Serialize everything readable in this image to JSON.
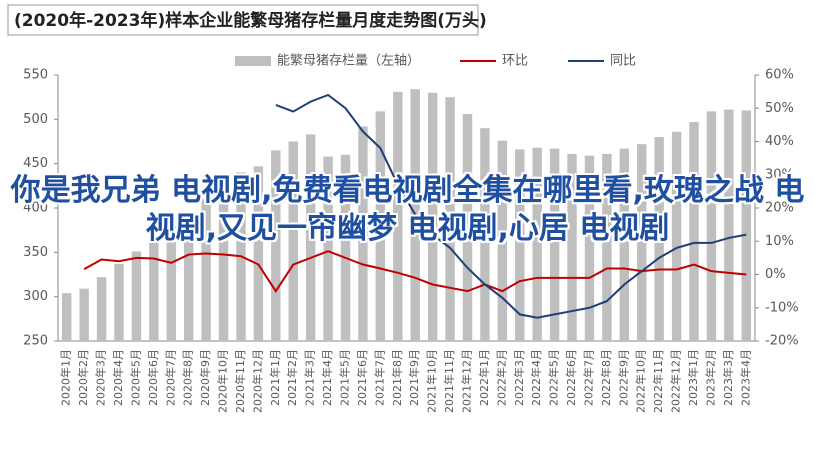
{
  "chart_data": {
    "type": "bar_line",
    "title": "(2020年-2023年)样本企业能繁母猪存栏量月度走势图(万头)",
    "annotation": "你是我兄弟 电视剧,免费看电视剧全集在哪里看,玫瑰之战 电视剧,又见一帘幽梦 电视剧,心居 电视剧",
    "categories": [
      "2020年1月",
      "2020年2月",
      "2020年3月",
      "2020年4月",
      "2020年5月",
      "2020年6月",
      "2020年7月",
      "2020年8月",
      "2020年9月",
      "2020年10月",
      "2020年11月",
      "2020年12月",
      "2021年1月",
      "2021年2月",
      "2021年3月",
      "2021年4月",
      "2021年5月",
      "2021年6月",
      "2021年7月",
      "2021年8月",
      "2021年9月",
      "2021年10月",
      "2021年11月",
      "2021年12月",
      "2022年1月",
      "2022年2月",
      "2022年3月",
      "2022年4月",
      "2022年5月",
      "2022年6月",
      "2022年7月",
      "2022年8月",
      "2022年9月",
      "2022年10月",
      "2022年11月",
      "2022年12月",
      "2023年1月",
      "2023年2月",
      "2023年3月",
      "2023年4月"
    ],
    "series": [
      {
        "name": "能繁母猪存栏量（左轴）",
        "color": "#bfbfbf",
        "kind": "bar",
        "axis": "y",
        "values": [
          304,
          309,
          322,
          337,
          351,
          363,
          380,
          396,
          410,
          424,
          440,
          447,
          465,
          475,
          483,
          458,
          460,
          492,
          509,
          531,
          534,
          530,
          525,
          506,
          490,
          476,
          466,
          468,
          467,
          461,
          459,
          461,
          467,
          472,
          480,
          486,
          497,
          509,
          511,
          510
        ]
      },
      {
        "name": "环比",
        "color": "#c00000",
        "kind": "line",
        "axis": "y2",
        "values": [
          null,
          1.6,
          4.5,
          4.0,
          5.0,
          4.8,
          3.5,
          6.0,
          6.3,
          6.0,
          5.5,
          3.0,
          -5.0,
          3.0,
          5.0,
          7.0,
          5.0,
          3.0,
          1.8,
          0.5,
          -1.0,
          -3.0,
          -4.0,
          -5.0,
          -3.0,
          -5.0,
          -2.0,
          -1.0,
          -1.0,
          -1.0,
          -1.0,
          1.8,
          1.8,
          1.0,
          1.5,
          1.5,
          3.0,
          1.0,
          0.5,
          0.0
        ]
      },
      {
        "name": "同比",
        "color": "#1f3f7a",
        "kind": "line",
        "axis": "y2",
        "values": [
          null,
          null,
          null,
          null,
          null,
          null,
          null,
          null,
          null,
          null,
          null,
          null,
          51,
          49,
          52,
          54,
          50,
          43,
          38,
          27,
          18,
          12,
          8,
          2,
          -3,
          -7,
          -12,
          -13,
          -12,
          -11,
          -10,
          -8,
          -3,
          1,
          5,
          8,
          9.5,
          9.5,
          11,
          12
        ]
      }
    ],
    "ylim": [
      250,
      550
    ],
    "yticks": [
      250,
      300,
      350,
      400,
      450,
      500,
      550
    ],
    "y2lim": [
      -20,
      60
    ],
    "y2ticks": [
      {
        "value": -20,
        "label": "-20%"
      },
      {
        "value": -10,
        "label": "-10%"
      },
      {
        "value": 0,
        "label": "0%"
      },
      {
        "value": 10,
        "label": "10%"
      },
      {
        "value": 20,
        "label": "20%"
      },
      {
        "value": 30,
        "label": "30%"
      },
      {
        "value": 40,
        "label": "40%"
      },
      {
        "value": 50,
        "label": "50%"
      },
      {
        "value": 60,
        "label": "60%"
      }
    ]
  }
}
